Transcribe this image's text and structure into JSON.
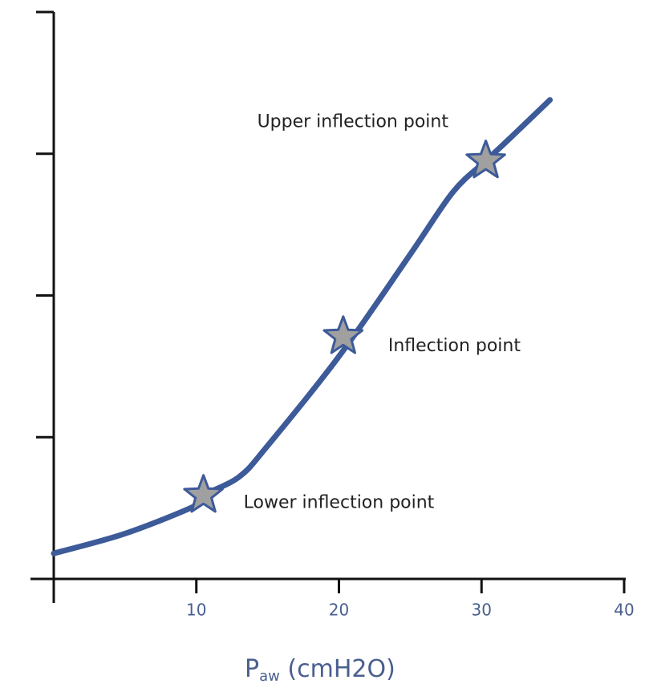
{
  "chart_data": {
    "type": "line",
    "xlabel": {
      "main": "P",
      "sub": "aw",
      "rest": " (cmH2O)"
    },
    "xlim": [
      0,
      40
    ],
    "xticks": [
      10,
      20,
      30,
      40
    ],
    "ylim": [
      0,
      4
    ],
    "yticks": [
      0,
      1,
      2,
      3,
      4
    ],
    "series": [
      {
        "color": "#3d5a99",
        "x": [
          0,
          5,
          10,
          10.5,
          13,
          15,
          20,
          25,
          28,
          30.3,
          32,
          34.8
        ],
        "values": [
          0.18,
          0.32,
          0.52,
          0.59,
          0.72,
          0.94,
          1.57,
          2.29,
          2.73,
          2.95,
          3.11,
          3.38
        ]
      }
    ],
    "points": {
      "color": "#a0a0a0",
      "x": [
        10.5,
        20.3,
        30.3
      ],
      "values": [
        0.59,
        1.71,
        2.95
      ],
      "labels": [
        "Lower inflection point",
        "Inflection point",
        "Upper inflection point"
      ]
    }
  }
}
